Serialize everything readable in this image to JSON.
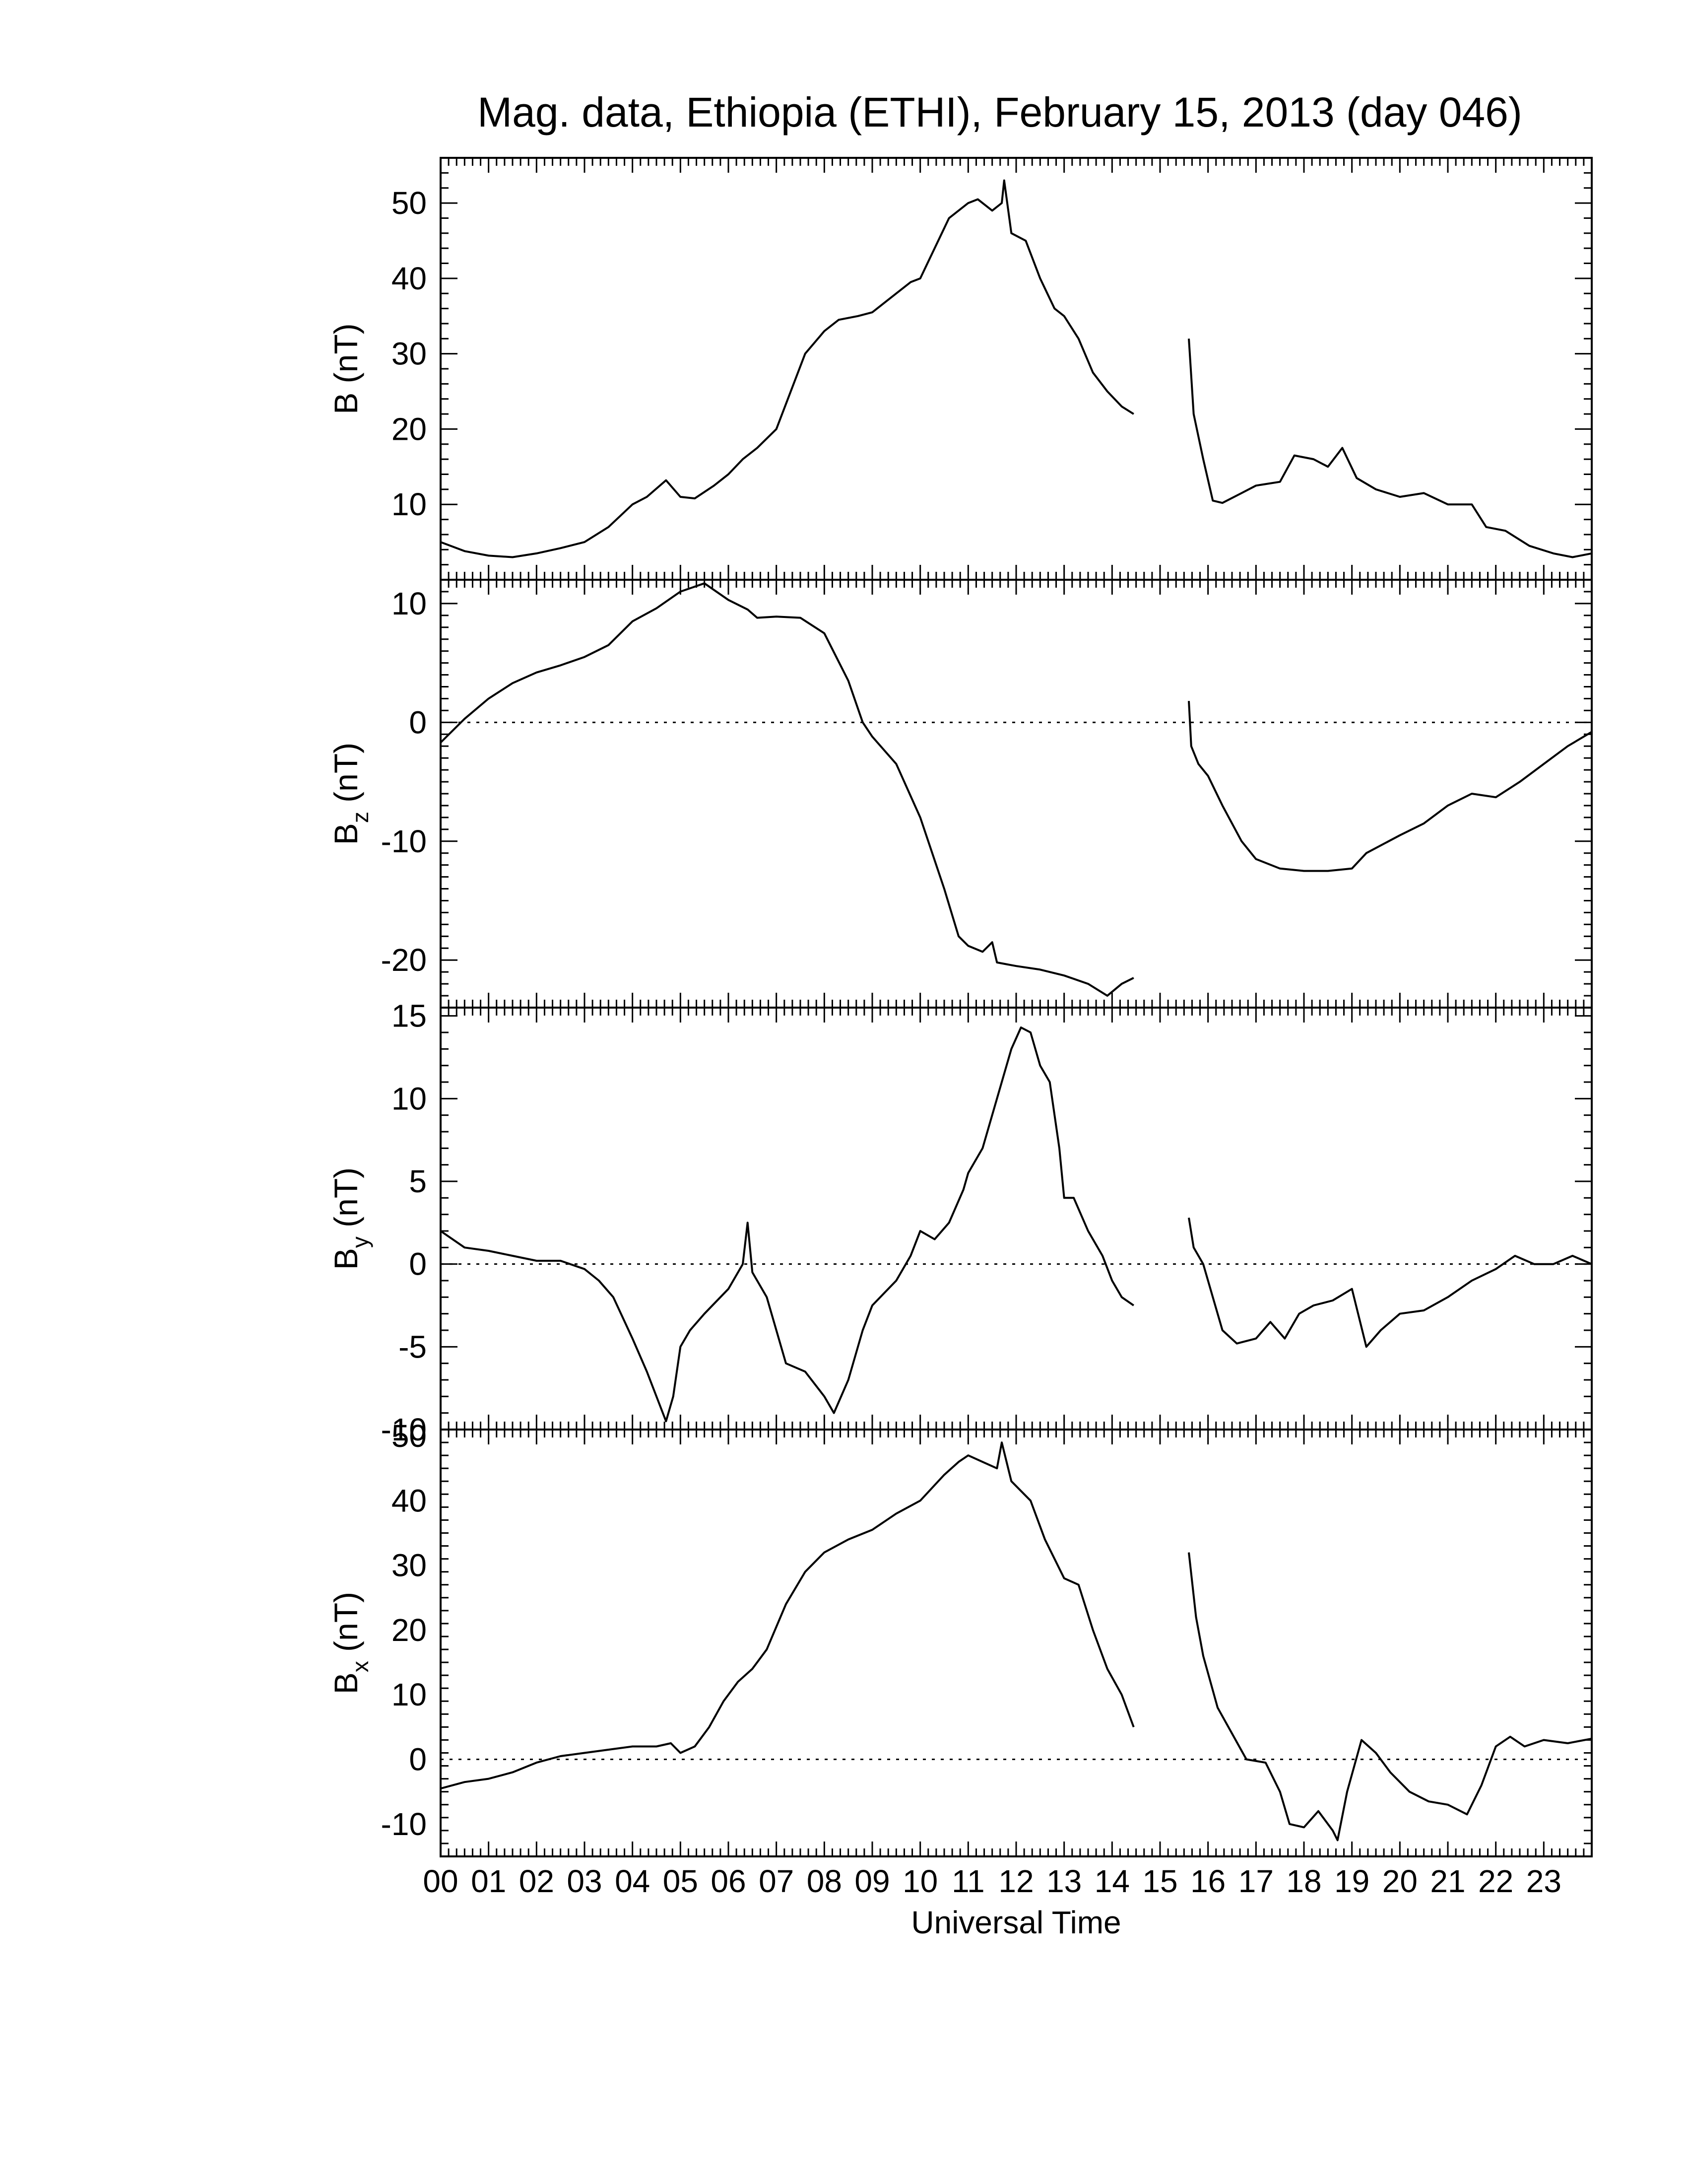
{
  "chart_data": {
    "type": "line",
    "title": "Mag. data, Ethiopia (ETHI), February 15, 2013 (day 046)",
    "xlabel": "Universal Time",
    "x_tick_labels": [
      "00",
      "01",
      "02",
      "03",
      "04",
      "05",
      "06",
      "07",
      "08",
      "09",
      "10",
      "11",
      "12",
      "13",
      "14",
      "15",
      "16",
      "17",
      "18",
      "19",
      "20",
      "21",
      "22",
      "23"
    ],
    "xlim": [
      0,
      24
    ],
    "panels": [
      {
        "ylabel": "B (nT)",
        "ylabel_main": "B",
        "ylabel_sub": "",
        "ylabel_unit": " (nT)",
        "ylim": [
          0,
          56
        ],
        "yticks": [
          10,
          20,
          30,
          40,
          50
        ],
        "zero_line": false,
        "segments": [
          [
            [
              0,
              5
            ],
            [
              0.5,
              3.8
            ],
            [
              1,
              3.2
            ],
            [
              1.5,
              3
            ],
            [
              2,
              3.5
            ],
            [
              2.5,
              4.2
            ],
            [
              3,
              5
            ],
            [
              3.5,
              7
            ],
            [
              4,
              10
            ],
            [
              4.3,
              11
            ],
            [
              4.7,
              13.2
            ],
            [
              5,
              11
            ],
            [
              5.3,
              10.8
            ],
            [
              5.7,
              12.5
            ],
            [
              6,
              14
            ],
            [
              6.3,
              16
            ],
            [
              6.6,
              17.5
            ],
            [
              7,
              20
            ],
            [
              7.3,
              25
            ],
            [
              7.6,
              30
            ],
            [
              8,
              33
            ],
            [
              8.3,
              34.5
            ],
            [
              8.7,
              35
            ],
            [
              9,
              35.5
            ],
            [
              9.5,
              38
            ],
            [
              9.8,
              39.5
            ],
            [
              10,
              40
            ],
            [
              10.3,
              44
            ],
            [
              10.6,
              48
            ],
            [
              11,
              50
            ],
            [
              11.2,
              50.5
            ],
            [
              11.5,
              49
            ],
            [
              11.7,
              50
            ],
            [
              11.75,
              53
            ],
            [
              11.9,
              46
            ],
            [
              12.2,
              45
            ],
            [
              12.5,
              40
            ],
            [
              12.8,
              36
            ],
            [
              13,
              35
            ],
            [
              13.3,
              32
            ],
            [
              13.6,
              27.5
            ],
            [
              13.9,
              25
            ],
            [
              14.2,
              23
            ],
            [
              14.45,
              22
            ]
          ],
          [
            [
              15.6,
              32
            ],
            [
              15.7,
              22
            ],
            [
              15.9,
              16
            ],
            [
              16.1,
              10.5
            ],
            [
              16.3,
              10.2
            ],
            [
              16.7,
              11.5
            ],
            [
              17,
              12.5
            ],
            [
              17.5,
              13
            ],
            [
              17.8,
              16.5
            ],
            [
              18.2,
              16
            ],
            [
              18.5,
              15
            ],
            [
              18.8,
              17.5
            ],
            [
              19.1,
              13.5
            ],
            [
              19.5,
              12
            ],
            [
              20,
              11
            ],
            [
              20.5,
              11.5
            ],
            [
              21,
              10
            ],
            [
              21.5,
              10
            ],
            [
              21.8,
              7
            ],
            [
              22.2,
              6.5
            ],
            [
              22.7,
              4.5
            ],
            [
              23.2,
              3.5
            ],
            [
              23.6,
              3
            ],
            [
              24,
              3.5
            ]
          ]
        ]
      },
      {
        "ylabel": "Bz (nT)",
        "ylabel_main": "B",
        "ylabel_sub": "z",
        "ylabel_unit": " (nT)",
        "ylim": [
          -24,
          12
        ],
        "yticks": [
          -20,
          -10,
          0,
          10
        ],
        "zero_line": true,
        "segments": [
          [
            [
              0,
              -1.7
            ],
            [
              0.5,
              0.3
            ],
            [
              1,
              2
            ],
            [
              1.5,
              3.3
            ],
            [
              2,
              4.2
            ],
            [
              2.5,
              4.8
            ],
            [
              3,
              5.5
            ],
            [
              3.5,
              6.5
            ],
            [
              4,
              8.5
            ],
            [
              4.5,
              9.6
            ],
            [
              5,
              11
            ],
            [
              5.5,
              11.7
            ],
            [
              6,
              10.3
            ],
            [
              6.4,
              9.5
            ],
            [
              6.6,
              8.8
            ],
            [
              7,
              8.9
            ],
            [
              7.5,
              8.8
            ],
            [
              8,
              7.5
            ],
            [
              8.5,
              3.5
            ],
            [
              8.8,
              0
            ],
            [
              9,
              -1.2
            ],
            [
              9.5,
              -3.5
            ],
            [
              10,
              -8
            ],
            [
              10.5,
              -14
            ],
            [
              10.8,
              -18
            ],
            [
              11,
              -18.8
            ],
            [
              11.3,
              -19.3
            ],
            [
              11.5,
              -18.5
            ],
            [
              11.6,
              -20.2
            ],
            [
              12,
              -20.5
            ],
            [
              12.5,
              -20.8
            ],
            [
              13,
              -21.3
            ],
            [
              13.5,
              -22
            ],
            [
              13.9,
              -23
            ],
            [
              14.2,
              -22
            ],
            [
              14.45,
              -21.5
            ]
          ],
          [
            [
              15.6,
              1.8
            ],
            [
              15.65,
              -2
            ],
            [
              15.8,
              -3.5
            ],
            [
              16,
              -4.5
            ],
            [
              16.3,
              -7
            ],
            [
              16.7,
              -10
            ],
            [
              17,
              -11.5
            ],
            [
              17.5,
              -12.3
            ],
            [
              18,
              -12.5
            ],
            [
              18.5,
              -12.5
            ],
            [
              19,
              -12.3
            ],
            [
              19.3,
              -11
            ],
            [
              20,
              -9.5
            ],
            [
              20.5,
              -8.5
            ],
            [
              21,
              -7
            ],
            [
              21.5,
              -6
            ],
            [
              22,
              -6.3
            ],
            [
              22.5,
              -5
            ],
            [
              23,
              -3.5
            ],
            [
              23.5,
              -2
            ],
            [
              24,
              -0.8
            ]
          ]
        ]
      },
      {
        "ylabel": "By (nT)",
        "ylabel_main": "B",
        "ylabel_sub": "y",
        "ylabel_unit": " (nT)",
        "ylim": [
          -10,
          15.5
        ],
        "yticks": [
          -10,
          -5,
          0,
          5,
          10,
          15
        ],
        "zero_line": true,
        "segments": [
          [
            [
              0,
              2
            ],
            [
              0.5,
              1
            ],
            [
              1,
              0.8
            ],
            [
              1.5,
              0.5
            ],
            [
              2,
              0.2
            ],
            [
              2.5,
              0.2
            ],
            [
              3,
              -0.3
            ],
            [
              3.3,
              -1
            ],
            [
              3.6,
              -2
            ],
            [
              4,
              -4.5
            ],
            [
              4.3,
              -6.5
            ],
            [
              4.5,
              -8
            ],
            [
              4.7,
              -9.5
            ],
            [
              4.85,
              -8
            ],
            [
              5,
              -5
            ],
            [
              5.2,
              -4
            ],
            [
              5.5,
              -3
            ],
            [
              6,
              -1.5
            ],
            [
              6.3,
              0
            ],
            [
              6.4,
              2.5
            ],
            [
              6.5,
              -0.5
            ],
            [
              6.8,
              -2
            ],
            [
              7.2,
              -6
            ],
            [
              7.6,
              -6.5
            ],
            [
              8,
              -8
            ],
            [
              8.2,
              -9
            ],
            [
              8.5,
              -7
            ],
            [
              8.8,
              -4
            ],
            [
              9,
              -2.5
            ],
            [
              9.5,
              -1
            ],
            [
              9.8,
              0.5
            ],
            [
              10,
              2
            ],
            [
              10.3,
              1.5
            ],
            [
              10.6,
              2.5
            ],
            [
              10.9,
              4.5
            ],
            [
              11,
              5.5
            ],
            [
              11.3,
              7
            ],
            [
              11.6,
              10
            ],
            [
              11.9,
              13
            ],
            [
              12.1,
              14.3
            ],
            [
              12.3,
              14
            ],
            [
              12.5,
              12
            ],
            [
              12.7,
              11
            ],
            [
              12.9,
              7
            ],
            [
              13,
              4
            ],
            [
              13.2,
              4
            ],
            [
              13.5,
              2
            ],
            [
              13.8,
              0.5
            ],
            [
              14,
              -1
            ],
            [
              14.2,
              -2
            ],
            [
              14.45,
              -2.5
            ]
          ],
          [
            [
              15.6,
              2.8
            ],
            [
              15.7,
              1
            ],
            [
              15.9,
              0
            ],
            [
              16.1,
              -2
            ],
            [
              16.3,
              -4
            ],
            [
              16.6,
              -4.8
            ],
            [
              17,
              -4.5
            ],
            [
              17.3,
              -3.5
            ],
            [
              17.6,
              -4.5
            ],
            [
              17.9,
              -3
            ],
            [
              18.2,
              -2.5
            ],
            [
              18.6,
              -2.2
            ],
            [
              19,
              -1.5
            ],
            [
              19.3,
              -5
            ],
            [
              19.6,
              -4
            ],
            [
              20,
              -3
            ],
            [
              20.5,
              -2.8
            ],
            [
              21,
              -2
            ],
            [
              21.5,
              -1
            ],
            [
              22,
              -0.3
            ],
            [
              22.4,
              0.5
            ],
            [
              22.8,
              0
            ],
            [
              23.2,
              0
            ],
            [
              23.6,
              0.5
            ],
            [
              24,
              0
            ]
          ]
        ]
      },
      {
        "ylabel": "Bx (nT)",
        "ylabel_main": "B",
        "ylabel_sub": "x",
        "ylabel_unit": " (nT)",
        "ylim": [
          -15,
          51
        ],
        "yticks": [
          -10,
          0,
          10,
          20,
          30,
          40,
          50
        ],
        "zero_line": true,
        "segments": [
          [
            [
              0,
              -4.5
            ],
            [
              0.5,
              -3.5
            ],
            [
              1,
              -3
            ],
            [
              1.5,
              -2
            ],
            [
              2,
              -0.5
            ],
            [
              2.5,
              0.5
            ],
            [
              3,
              1
            ],
            [
              3.5,
              1.5
            ],
            [
              4,
              2
            ],
            [
              4.5,
              2
            ],
            [
              4.8,
              2.5
            ],
            [
              5,
              1
            ],
            [
              5.3,
              2
            ],
            [
              5.6,
              5
            ],
            [
              5.9,
              9
            ],
            [
              6.2,
              12
            ],
            [
              6.5,
              14
            ],
            [
              6.8,
              17
            ],
            [
              7.2,
              24
            ],
            [
              7.6,
              29
            ],
            [
              8,
              32
            ],
            [
              8.5,
              34
            ],
            [
              9,
              35.5
            ],
            [
              9.5,
              38
            ],
            [
              10,
              40
            ],
            [
              10.5,
              44
            ],
            [
              10.8,
              46
            ],
            [
              11,
              47
            ],
            [
              11.3,
              46
            ],
            [
              11.6,
              45
            ],
            [
              11.7,
              49
            ],
            [
              11.9,
              43
            ],
            [
              12.3,
              40
            ],
            [
              12.6,
              34
            ],
            [
              13,
              28
            ],
            [
              13.3,
              27
            ],
            [
              13.6,
              20
            ],
            [
              13.9,
              14
            ],
            [
              14.2,
              10
            ],
            [
              14.45,
              5
            ]
          ],
          [
            [
              15.6,
              32
            ],
            [
              15.75,
              22
            ],
            [
              15.9,
              16
            ],
            [
              16.2,
              8
            ],
            [
              16.5,
              4
            ],
            [
              16.8,
              0
            ],
            [
              17.2,
              -0.5
            ],
            [
              17.5,
              -5
            ],
            [
              17.7,
              -10
            ],
            [
              18,
              -10.5
            ],
            [
              18.3,
              -8
            ],
            [
              18.6,
              -11
            ],
            [
              18.7,
              -12.5
            ],
            [
              18.9,
              -5
            ],
            [
              19.2,
              3
            ],
            [
              19.5,
              1
            ],
            [
              19.8,
              -2
            ],
            [
              20.2,
              -5
            ],
            [
              20.6,
              -6.5
            ],
            [
              21,
              -7
            ],
            [
              21.4,
              -8.5
            ],
            [
              21.7,
              -4
            ],
            [
              22,
              2
            ],
            [
              22.3,
              3.5
            ],
            [
              22.6,
              2
            ],
            [
              23,
              3
            ],
            [
              23.5,
              2.5
            ],
            [
              24,
              3.2
            ]
          ]
        ]
      }
    ]
  }
}
